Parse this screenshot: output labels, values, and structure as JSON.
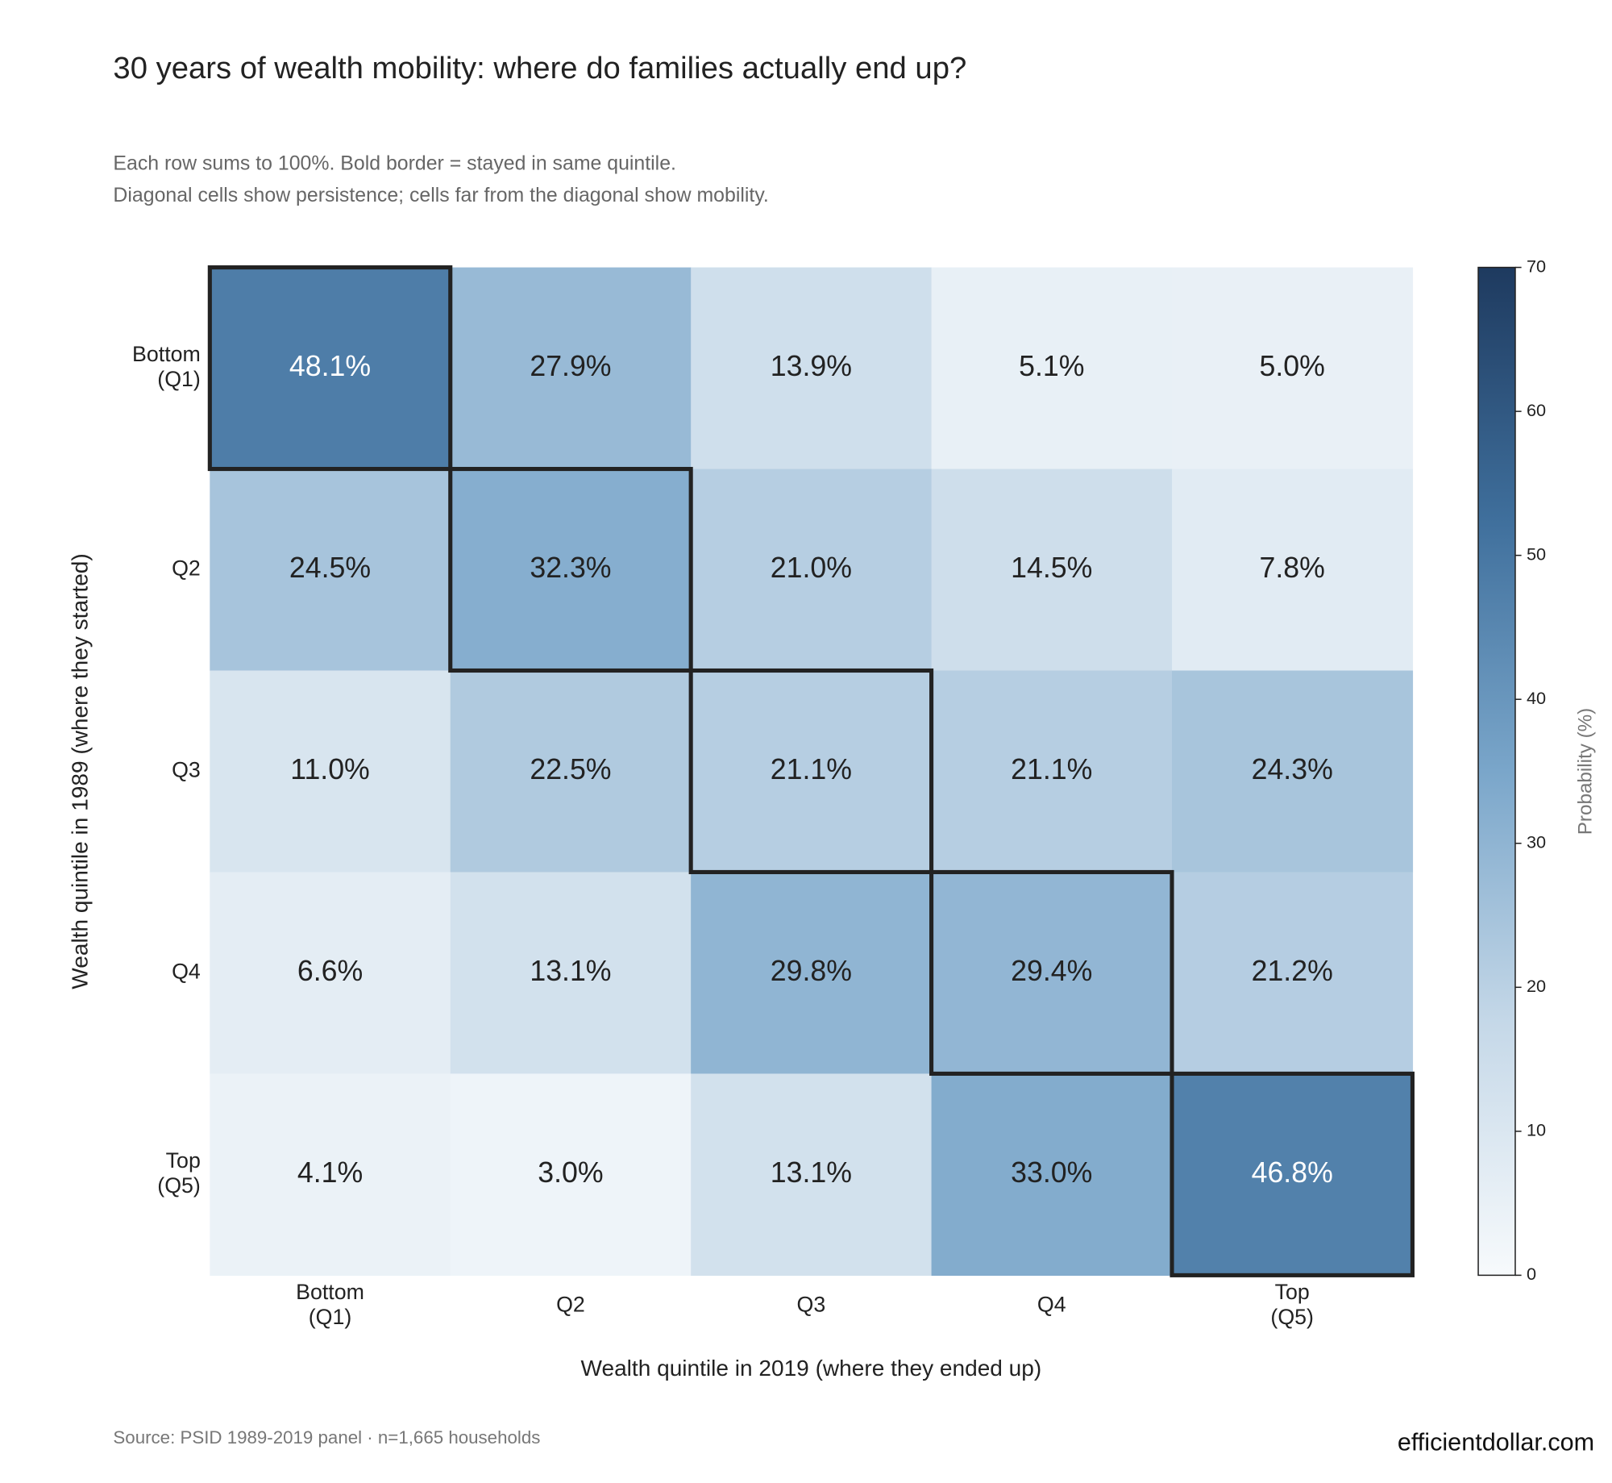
{
  "chart_data": {
    "type": "heatmap",
    "title": "30 years of wealth mobility: where do families actually end up?",
    "subtitle": [
      "Each row sums to 100%. Bold border = stayed in same quintile.",
      "Diagonal cells show persistence; cells far from the diagonal show mobility."
    ],
    "x_label": "Wealth quintile in 2019 (where they ended up)",
    "y_label": "Wealth quintile in 1989 (where they started)",
    "columns": [
      "Bottom\n(Q1)",
      "Q2",
      "Q3",
      "Q4",
      "Top\n(Q5)"
    ],
    "rows": [
      "Bottom\n(Q1)",
      "Q2",
      "Q3",
      "Q4",
      "Top\n(Q5)"
    ],
    "values": [
      [
        48.1,
        27.9,
        13.9,
        5.1,
        5.0
      ],
      [
        24.5,
        32.3,
        21.0,
        14.5,
        7.8
      ],
      [
        11.0,
        22.5,
        21.1,
        21.1,
        24.3
      ],
      [
        6.6,
        13.1,
        29.8,
        29.4,
        21.2
      ],
      [
        4.1,
        3.0,
        13.1,
        33.0,
        46.8
      ]
    ],
    "value_labels": [
      [
        "48.1%",
        "27.9%",
        "13.9%",
        "5.1%",
        "5.0%"
      ],
      [
        "24.5%",
        "32.3%",
        "21.0%",
        "14.5%",
        "7.8%"
      ],
      [
        "11.0%",
        "22.5%",
        "21.1%",
        "21.1%",
        "24.3%"
      ],
      [
        "6.6%",
        "13.1%",
        "29.8%",
        "29.4%",
        "21.2%"
      ],
      [
        "4.1%",
        "3.0%",
        "13.1%",
        "33.0%",
        "46.8%"
      ]
    ],
    "colors": [
      "#f7fafc",
      "#c5d8e8",
      "#7aa6ca",
      "#3f6f9c",
      "#1e3a5f"
    ],
    "clim": [
      0,
      70
    ],
    "cticks": [
      0,
      10,
      20,
      30,
      40,
      50,
      60,
      70
    ],
    "colorbar_label": "Probability (%)",
    "highlight_diagonal": true,
    "source": "Source: PSID 1989-2019 panel · n=1,665 households",
    "brand": "efficientdollar.com"
  }
}
